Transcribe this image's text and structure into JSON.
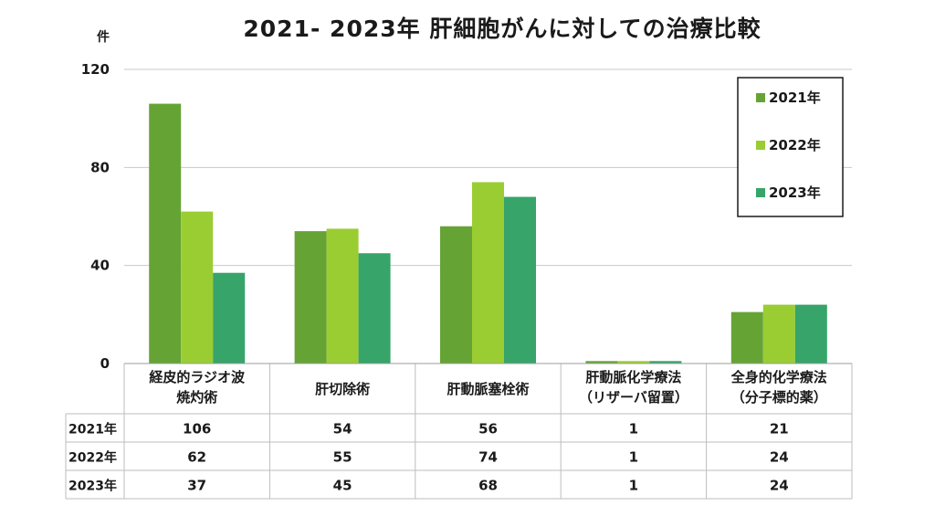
{
  "title": "2021- 2023年  肝細胞がんに対しての治療比較",
  "unit_label": "件",
  "chart_data": {
    "type": "bar",
    "title": "2021- 2023年  肝細胞がんに対しての治療比較",
    "ylabel": "件",
    "ylim": [
      0,
      120
    ],
    "yticks": [
      0,
      40,
      80,
      120
    ],
    "grid": true,
    "legend_position": "top-right",
    "categories": [
      [
        "経皮的ラジオ波",
        "焼灼術"
      ],
      [
        "肝切除術"
      ],
      [
        "肝動脈塞栓術"
      ],
      [
        "肝動脈化学療法",
        "（リザーバ留置）"
      ],
      [
        "全身的化学療法",
        "（分子標的薬）"
      ]
    ],
    "series": [
      {
        "name": "2021年",
        "color": "#66a335",
        "values": [
          106,
          54,
          56,
          1,
          21
        ]
      },
      {
        "name": "2022年",
        "color": "#9acd32",
        "values": [
          62,
          55,
          74,
          1,
          24
        ]
      },
      {
        "name": "2023年",
        "color": "#37a46a",
        "values": [
          37,
          45,
          68,
          1,
          24
        ]
      }
    ],
    "table": true
  }
}
